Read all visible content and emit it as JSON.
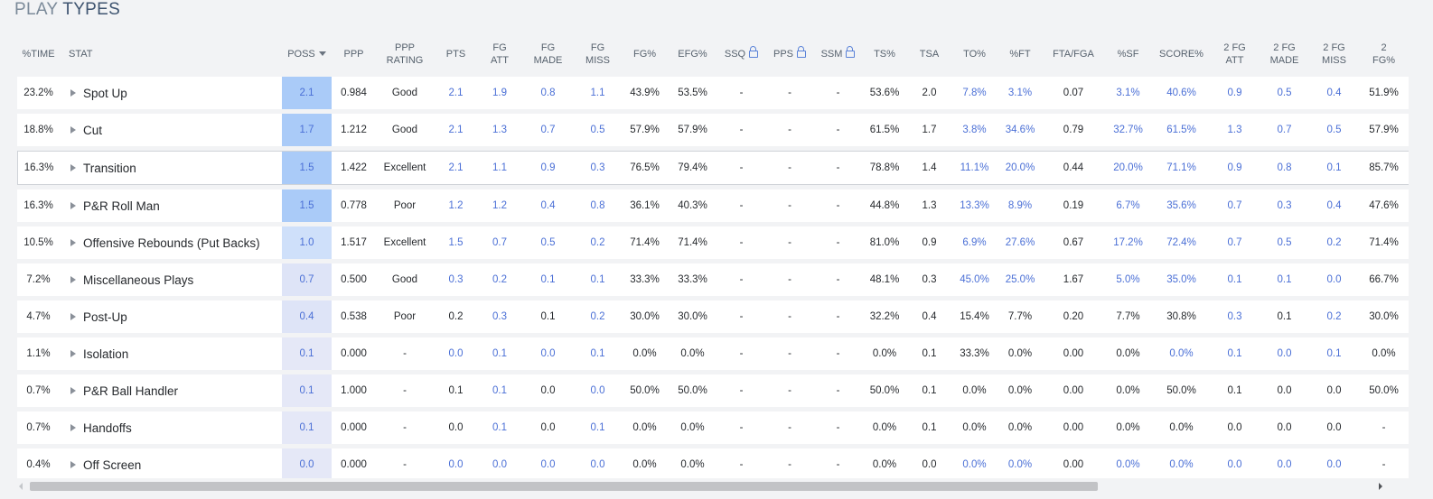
{
  "title": {
    "word1": "PLAY",
    "word2": "TYPES"
  },
  "colors": {
    "accent_blue": "#4a6fd6",
    "poss_shades": {
      "strong": "#aacbf8",
      "medium": "#cfe0fa",
      "light": "#dee4f7",
      "faint": "#e5e8f7"
    }
  },
  "icons": {
    "sort": "caret-down-icon",
    "lock": "lock-icon",
    "expand": "caret-right-icon"
  },
  "columns": [
    {
      "key": "time",
      "label": "%TIME",
      "w": 47,
      "cls": "dark"
    },
    {
      "key": "stat",
      "label": "STAT",
      "w": 246,
      "cls": "stat"
    },
    {
      "key": "poss",
      "label": "POSS",
      "w": 55,
      "cls": "poss",
      "sort": true
    },
    {
      "key": "ppp",
      "label": "PPP",
      "w": 49,
      "cls": "dark"
    },
    {
      "key": "ppp_rating",
      "label": "PPP\nRATING",
      "w": 64,
      "cls": "dark"
    },
    {
      "key": "pts",
      "label": "PTS",
      "w": 49,
      "cls": "blue"
    },
    {
      "key": "fg_att",
      "label": "FG\nATT",
      "w": 48,
      "cls": "blue"
    },
    {
      "key": "fg_made",
      "label": "FG\nMADE",
      "w": 59,
      "cls": "blue"
    },
    {
      "key": "fg_miss",
      "label": "FG\nMISS",
      "w": 51,
      "cls": "blue"
    },
    {
      "key": "fg_pct",
      "label": "FG%",
      "w": 53,
      "cls": "dark"
    },
    {
      "key": "efg",
      "label": "EFG%",
      "w": 53,
      "cls": "dark"
    },
    {
      "key": "ssq",
      "label": "SSQ",
      "w": 55,
      "cls": "dark",
      "lock": true
    },
    {
      "key": "pps",
      "label": "PPS",
      "w": 52,
      "cls": "dark",
      "lock": true
    },
    {
      "key": "ssm",
      "label": "SSM",
      "w": 55,
      "cls": "dark",
      "lock": true
    },
    {
      "key": "ts",
      "label": "TS%",
      "w": 48,
      "cls": "dark"
    },
    {
      "key": "tsa",
      "label": "TSA",
      "w": 51,
      "cls": "dark"
    },
    {
      "key": "to",
      "label": "TO%",
      "w": 49,
      "cls": "blue"
    },
    {
      "key": "ft",
      "label": "%FT",
      "w": 52,
      "cls": "blue"
    },
    {
      "key": "fta_fga",
      "label": "FTA/FGA",
      "w": 66,
      "cls": "dark"
    },
    {
      "key": "sf",
      "label": "%SF",
      "w": 55,
      "cls": "blue"
    },
    {
      "key": "score",
      "label": "SCORE%",
      "w": 63,
      "cls": "blue"
    },
    {
      "key": "fg2_att",
      "label": "2 FG\nATT",
      "w": 55,
      "cls": "blue"
    },
    {
      "key": "fg2_made",
      "label": "2 FG\nMADE",
      "w": 55,
      "cls": "blue"
    },
    {
      "key": "fg2_miss",
      "label": "2 FG\nMISS",
      "w": 55,
      "cls": "blue"
    },
    {
      "key": "fg2_pct",
      "label": "2\nFG%",
      "w": 55,
      "cls": "dark"
    }
  ],
  "rows": [
    {
      "shade": "strong",
      "values": [
        "23.2%",
        "Spot Up",
        "2.1",
        "0.984",
        "Good",
        "2.1",
        "1.9",
        "0.8",
        "1.1",
        "43.9%",
        "53.5%",
        "-",
        "-",
        "-",
        "53.6%",
        "2.0",
        "7.8%",
        "3.1%",
        "0.07",
        "3.1%",
        "40.6%",
        "0.9",
        "0.5",
        "0.4",
        "51.9%"
      ]
    },
    {
      "shade": "strong",
      "values": [
        "18.8%",
        "Cut",
        "1.7",
        "1.212",
        "Good",
        "2.1",
        "1.3",
        "0.7",
        "0.5",
        "57.9%",
        "57.9%",
        "-",
        "-",
        "-",
        "61.5%",
        "1.7",
        "3.8%",
        "34.6%",
        "0.79",
        "32.7%",
        "61.5%",
        "1.3",
        "0.7",
        "0.5",
        "57.9%"
      ]
    },
    {
      "shade": "strong",
      "highlight": true,
      "values": [
        "16.3%",
        "Transition",
        "1.5",
        "1.422",
        "Excellent",
        "2.1",
        "1.1",
        "0.9",
        "0.3",
        "76.5%",
        "79.4%",
        "-",
        "-",
        "-",
        "78.8%",
        "1.4",
        "11.1%",
        "20.0%",
        "0.44",
        "20.0%",
        "71.1%",
        "0.9",
        "0.8",
        "0.1",
        "85.7%"
      ]
    },
    {
      "shade": "strong",
      "values": [
        "16.3%",
        "P&R Roll Man",
        "1.5",
        "0.778",
        "Poor",
        "1.2",
        "1.2",
        "0.4",
        "0.8",
        "36.1%",
        "40.3%",
        "-",
        "-",
        "-",
        "44.8%",
        "1.3",
        "13.3%",
        "8.9%",
        "0.19",
        "6.7%",
        "35.6%",
        "0.7",
        "0.3",
        "0.4",
        "47.6%"
      ]
    },
    {
      "shade": "medium",
      "values": [
        "10.5%",
        "Offensive Rebounds (Put Backs)",
        "1.0",
        "1.517",
        "Excellent",
        "1.5",
        "0.7",
        "0.5",
        "0.2",
        "71.4%",
        "71.4%",
        "-",
        "-",
        "-",
        "81.0%",
        "0.9",
        "6.9%",
        "27.6%",
        "0.67",
        "17.2%",
        "72.4%",
        "0.7",
        "0.5",
        "0.2",
        "71.4%"
      ]
    },
    {
      "shade": "light",
      "values": [
        "7.2%",
        "Miscellaneous Plays",
        "0.7",
        "0.500",
        "Good",
        "0.3",
        "0.2",
        "0.1",
        "0.1",
        "33.3%",
        "33.3%",
        "-",
        "-",
        "-",
        "48.1%",
        "0.3",
        "45.0%",
        "25.0%",
        "1.67",
        "5.0%",
        "35.0%",
        "0.1",
        "0.1",
        "0.0",
        "66.7%"
      ]
    },
    {
      "shade": "light",
      "values": [
        "4.7%",
        "Post-Up",
        "0.4",
        "0.538",
        "Poor",
        "0.2",
        "0.3",
        "0.1",
        "0.2",
        "30.0%",
        "30.0%",
        "-",
        "-",
        "-",
        "32.2%",
        "0.4",
        "15.4%",
        "7.7%",
        "0.20",
        "7.7%",
        "30.8%",
        "0.3",
        "0.1",
        "0.2",
        "30.0%"
      ]
    },
    {
      "shade": "faint",
      "values": [
        "1.1%",
        "Isolation",
        "0.1",
        "0.000",
        "-",
        "0.0",
        "0.1",
        "0.0",
        "0.1",
        "0.0%",
        "0.0%",
        "-",
        "-",
        "-",
        "0.0%",
        "0.1",
        "33.3%",
        "0.0%",
        "0.00",
        "0.0%",
        "0.0%",
        "0.1",
        "0.0",
        "0.1",
        "0.0%"
      ]
    },
    {
      "shade": "faint",
      "values": [
        "0.7%",
        "P&R Ball Handler",
        "0.1",
        "1.000",
        "-",
        "0.1",
        "0.1",
        "0.0",
        "0.0",
        "50.0%",
        "50.0%",
        "-",
        "-",
        "-",
        "50.0%",
        "0.1",
        "0.0%",
        "0.0%",
        "0.00",
        "0.0%",
        "50.0%",
        "0.1",
        "0.0",
        "0.0",
        "50.0%"
      ]
    },
    {
      "shade": "faint",
      "values": [
        "0.7%",
        "Handoffs",
        "0.1",
        "0.000",
        "-",
        "0.0",
        "0.1",
        "0.0",
        "0.1",
        "0.0%",
        "0.0%",
        "-",
        "-",
        "-",
        "0.0%",
        "0.1",
        "0.0%",
        "0.0%",
        "0.00",
        "0.0%",
        "0.0%",
        "0.0",
        "0.0",
        "0.0",
        "-"
      ]
    },
    {
      "shade": "faint",
      "values": [
        "0.4%",
        "Off Screen",
        "0.0",
        "0.000",
        "-",
        "0.0",
        "0.0",
        "0.0",
        "0.0",
        "0.0%",
        "0.0%",
        "-",
        "-",
        "-",
        "0.0%",
        "0.0",
        "0.0%",
        "0.0%",
        "0.00",
        "0.0%",
        "0.0%",
        "0.0",
        "0.0",
        "0.0",
        "-"
      ]
    }
  ],
  "blue_overrides": [
    {
      "row": 7,
      "cols": [
        "pts",
        "fg_made",
        "to",
        "ft",
        "sf",
        "score",
        "fg2_made"
      ],
      "dark": true
    },
    {
      "row": 8,
      "cols": [
        "to",
        "ft",
        "sf",
        "fg2_made",
        "fg2_miss"
      ],
      "mixed": {
        "to": "dark",
        "ft": "dark",
        "sf": "dark",
        "fg2_made": "blue",
        "fg2_miss": "blue"
      }
    },
    {
      "row": 9,
      "cols": [
        "pts",
        "fg_made",
        "to",
        "ft",
        "sf",
        "score",
        "fg2_att",
        "fg2_made",
        "fg2_miss"
      ],
      "dark": true
    },
    {
      "row": 10,
      "cols": [
        "pts",
        "fg_made",
        "to",
        "ft",
        "sf",
        "score",
        "fg2_att",
        "fg2_made",
        "fg2_miss"
      ],
      "dark": true
    }
  ]
}
